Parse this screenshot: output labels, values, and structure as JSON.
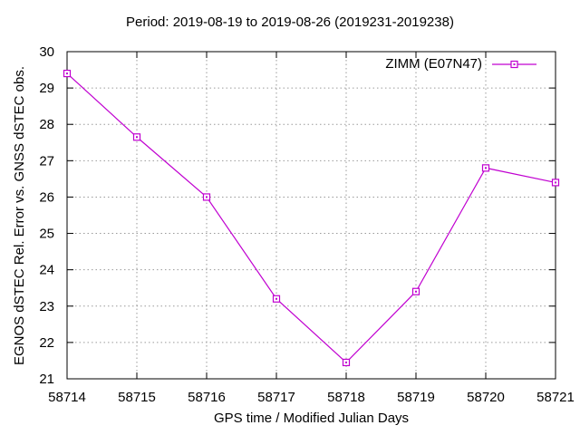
{
  "chart_data": {
    "type": "line",
    "title": "Period: 2019-08-19 to 2019-08-26 (2019231-2019238)",
    "xlabel": "GPS time / Modified Julian Days",
    "ylabel": "EGNOS dSTEC Rel. Error vs. GNSS dSTEC obs.",
    "xlim": [
      58714,
      58721
    ],
    "ylim": [
      21,
      30
    ],
    "x_ticks": [
      58714,
      58715,
      58716,
      58717,
      58718,
      58719,
      58720,
      58721
    ],
    "y_ticks": [
      21,
      22,
      23,
      24,
      25,
      26,
      27,
      28,
      29,
      30
    ],
    "grid": true,
    "legend_position": "top-right-inside",
    "series": [
      {
        "name": "ZIMM (E07N47)",
        "x": [
          58714,
          58715,
          58716,
          58717,
          58718,
          58719,
          58720,
          58721
        ],
        "y": [
          29.4,
          27.65,
          26.0,
          23.2,
          21.45,
          23.4,
          26.8,
          26.4
        ],
        "color": "#C000D0",
        "marker": "open-square",
        "line_style": "solid"
      }
    ],
    "colors": {
      "background": "#ffffff",
      "grid": "#9a9a9a",
      "axis": "#000000",
      "text": "#000000"
    }
  }
}
